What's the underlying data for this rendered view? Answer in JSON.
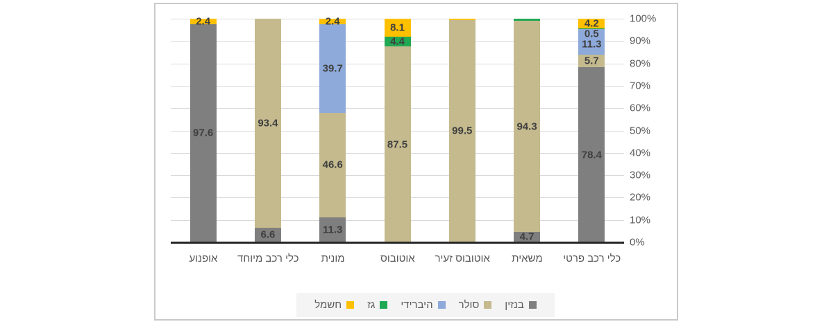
{
  "chart_data": {
    "type": "bar",
    "subtype": "stacked-100-percent",
    "direction": "rtl",
    "categories": [
      "אופנוע",
      "כלי רכב מיוחד",
      "מונית",
      "אוטובוס",
      "אוטובוס זעיר",
      "משאית",
      "כלי רכב פרטי"
    ],
    "categories_order_note": "as displayed left-to-right; chart is RTL so first logical category is the rightmost",
    "series": [
      {
        "name": "בנזין",
        "color": "#7f7f7f",
        "values": [
          97.6,
          6.6,
          11.3,
          0,
          0,
          4.7,
          78.4
        ],
        "labels": [
          "97.6",
          "6.6",
          "11.3",
          "",
          "",
          "4.7",
          "78.4"
        ]
      },
      {
        "name": "סולר",
        "color": "#c4ba8e",
        "values": [
          0,
          93.4,
          46.6,
          87.5,
          99.5,
          94.3,
          5.7
        ],
        "labels": [
          "",
          "93.4",
          "46.6",
          "87.5",
          "99.5",
          "94.3",
          "5.7"
        ]
      },
      {
        "name": "היברידי",
        "color": "#8eaadb",
        "values": [
          0,
          0,
          39.7,
          0,
          0,
          0,
          11.3
        ],
        "labels": [
          "",
          "",
          "39.7",
          "",
          "",
          "",
          "11.3"
        ]
      },
      {
        "name": "גז",
        "color": "#21a853",
        "values": [
          0,
          0,
          0,
          4.4,
          0,
          1.0,
          0.5
        ],
        "labels": [
          "",
          "",
          "",
          "4.4",
          "",
          "",
          "0.5"
        ]
      },
      {
        "name": "חשמל",
        "color": "#ffc000",
        "values": [
          2.4,
          0,
          2.4,
          8.1,
          0.5,
          0,
          4.2
        ],
        "labels": [
          "2.4",
          "",
          "2.4",
          "8.1",
          "",
          "",
          "4.2"
        ]
      }
    ],
    "y_axis": {
      "min": 0,
      "max": 100,
      "tick_step": 10,
      "ticks": [
        "0%",
        "10%",
        "20%",
        "30%",
        "40%",
        "50%",
        "60%",
        "70%",
        "80%",
        "90%",
        "100%"
      ],
      "side": "right"
    },
    "legend": {
      "position": "bottom",
      "items": [
        "בנזין",
        "סולר",
        "היברידי",
        "גז",
        "חשמל"
      ]
    },
    "grid": true,
    "title": "",
    "xlabel": "",
    "ylabel": ""
  },
  "styles": {
    "chart_border": "#c9c9c9",
    "gridline": "#d9d9d9",
    "axis_line": "#262626",
    "data_label": "#3f3f3f",
    "tick_label": "#595959",
    "category_label": "#595959",
    "legend_bg": "#f4f4f4",
    "background": "#ffffff"
  }
}
